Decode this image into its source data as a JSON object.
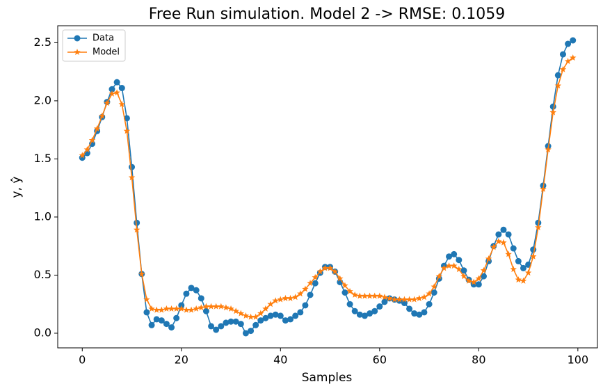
{
  "chart_data": {
    "type": "line",
    "title": "Free Run simulation. Model 2 -> RMSE: 0.1059",
    "xlabel": "Samples",
    "ylabel": "y, ŷ",
    "x": [
      0,
      1,
      2,
      3,
      4,
      5,
      6,
      7,
      8,
      9,
      10,
      11,
      12,
      13,
      14,
      15,
      16,
      17,
      18,
      19,
      20,
      21,
      22,
      23,
      24,
      25,
      26,
      27,
      28,
      29,
      30,
      31,
      32,
      33,
      34,
      35,
      36,
      37,
      38,
      39,
      40,
      41,
      42,
      43,
      44,
      45,
      46,
      47,
      48,
      49,
      50,
      51,
      52,
      53,
      54,
      55,
      56,
      57,
      58,
      59,
      60,
      61,
      62,
      63,
      64,
      65,
      66,
      67,
      68,
      69,
      70,
      71,
      72,
      73,
      74,
      75,
      76,
      77,
      78,
      79,
      80,
      81,
      82,
      83,
      84,
      85,
      86,
      87,
      88,
      89,
      90,
      91,
      92,
      93,
      94,
      95,
      96,
      97,
      98,
      99
    ],
    "series": [
      {
        "name": "Data",
        "color": "#1f77b4",
        "marker": "circle",
        "values": [
          1.51,
          1.55,
          1.63,
          1.74,
          1.86,
          1.99,
          2.1,
          2.16,
          2.11,
          1.85,
          1.43,
          0.95,
          0.51,
          0.18,
          0.07,
          0.12,
          0.11,
          0.08,
          0.05,
          0.13,
          0.24,
          0.34,
          0.39,
          0.37,
          0.3,
          0.19,
          0.06,
          0.03,
          0.06,
          0.09,
          0.1,
          0.1,
          0.08,
          0.0,
          0.02,
          0.07,
          0.11,
          0.13,
          0.15,
          0.16,
          0.15,
          0.11,
          0.12,
          0.15,
          0.18,
          0.24,
          0.33,
          0.43,
          0.52,
          0.57,
          0.57,
          0.53,
          0.44,
          0.35,
          0.25,
          0.19,
          0.16,
          0.15,
          0.17,
          0.19,
          0.23,
          0.27,
          0.3,
          0.29,
          0.28,
          0.26,
          0.21,
          0.17,
          0.16,
          0.18,
          0.25,
          0.35,
          0.47,
          0.58,
          0.66,
          0.68,
          0.63,
          0.54,
          0.46,
          0.42,
          0.42,
          0.49,
          0.62,
          0.75,
          0.85,
          0.89,
          0.85,
          0.73,
          0.62,
          0.56,
          0.59,
          0.72,
          0.95,
          1.27,
          1.61,
          1.95,
          2.22,
          2.4,
          2.49,
          2.52
        ]
      },
      {
        "name": "Model",
        "color": "#ff7f0e",
        "marker": "star",
        "values": [
          1.53,
          1.58,
          1.66,
          1.76,
          1.87,
          1.98,
          2.06,
          2.07,
          1.97,
          1.74,
          1.34,
          0.89,
          0.51,
          0.29,
          0.21,
          0.2,
          0.2,
          0.21,
          0.21,
          0.21,
          0.21,
          0.2,
          0.2,
          0.21,
          0.22,
          0.23,
          0.23,
          0.23,
          0.23,
          0.22,
          0.21,
          0.19,
          0.17,
          0.15,
          0.14,
          0.14,
          0.17,
          0.21,
          0.25,
          0.28,
          0.29,
          0.3,
          0.3,
          0.31,
          0.34,
          0.38,
          0.43,
          0.48,
          0.53,
          0.56,
          0.56,
          0.53,
          0.47,
          0.41,
          0.36,
          0.33,
          0.32,
          0.32,
          0.32,
          0.32,
          0.32,
          0.31,
          0.3,
          0.29,
          0.29,
          0.29,
          0.29,
          0.29,
          0.3,
          0.31,
          0.34,
          0.4,
          0.49,
          0.56,
          0.58,
          0.58,
          0.55,
          0.49,
          0.45,
          0.44,
          0.47,
          0.54,
          0.64,
          0.74,
          0.79,
          0.78,
          0.68,
          0.55,
          0.46,
          0.45,
          0.52,
          0.66,
          0.91,
          1.24,
          1.58,
          1.9,
          2.13,
          2.27,
          2.34,
          2.37
        ]
      }
    ],
    "xlim": [
      -4.95,
      103.95
    ],
    "xticks": [
      0,
      20,
      40,
      60,
      80,
      100
    ],
    "ylim": [
      -0.126,
      2.646
    ],
    "yticks": [
      {
        "value": 0,
        "label": "0.0"
      },
      0.5,
      {
        "value": 1,
        "label": "1.0"
      },
      1.5,
      {
        "value": 2,
        "label": "2.0"
      },
      2.5
    ],
    "legend": "upper left",
    "grid": false
  }
}
